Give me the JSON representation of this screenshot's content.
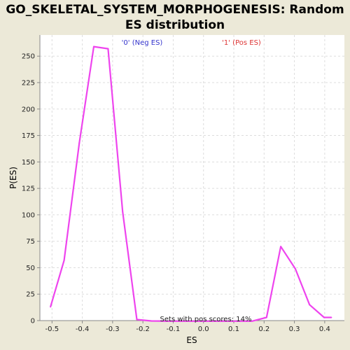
{
  "chart_data": {
    "type": "line",
    "title_lines": [
      "GO_SKELETAL_SYSTEM_MORPHOGENESIS: Random",
      "ES distribution"
    ],
    "xlabel": "ES",
    "ylabel": "P(ES)",
    "xlim": [
      -0.54,
      0.465
    ],
    "ylim": [
      0,
      270
    ],
    "x_ticks": [
      -0.5,
      -0.4,
      -0.3,
      -0.2,
      -0.1,
      0.0,
      0.1,
      0.2,
      0.3,
      0.4
    ],
    "x_tick_labels": [
      "-0.5",
      "-0.4",
      "-0.3",
      "-0.2",
      "-0.1",
      "0.0",
      "0.1",
      "0.2",
      "0.3",
      "0.4"
    ],
    "y_ticks": [
      0,
      25,
      50,
      75,
      100,
      125,
      150,
      175,
      200,
      225,
      250
    ],
    "y_tick_labels": [
      "0",
      "25",
      "50",
      "75",
      "100",
      "125",
      "150",
      "175",
      "200",
      "225",
      "250"
    ],
    "grid": true,
    "legend": [
      {
        "label": "'0' (Neg ES)",
        "color": "#3333cc",
        "position": "top-left"
      },
      {
        "label": "'1' (Pos ES)",
        "color": "#dd3333",
        "position": "top-right"
      }
    ],
    "annotation": "Sets with pos scores: 14%",
    "series": [
      {
        "color": "#ee44ee",
        "x": [
          -0.505,
          -0.46,
          -0.41,
          -0.362,
          -0.315,
          -0.267,
          -0.22,
          -0.172,
          -0.125,
          -0.077,
          -0.03,
          0.018,
          0.065,
          0.113,
          0.16,
          0.208,
          0.255,
          0.303,
          0.35,
          0.398,
          0.422
        ],
        "y": [
          13,
          57,
          168,
          259,
          257,
          103,
          1,
          -0.3,
          -0.5,
          -0.5,
          -0.5,
          -0.5,
          -0.5,
          -0.5,
          -0.5,
          3,
          70,
          49,
          15,
          3,
          3
        ]
      }
    ]
  },
  "colors": {
    "background": "#ece9d8",
    "plot_background": "#ffffff",
    "grid": "#dddddd",
    "axis": "#888888"
  }
}
